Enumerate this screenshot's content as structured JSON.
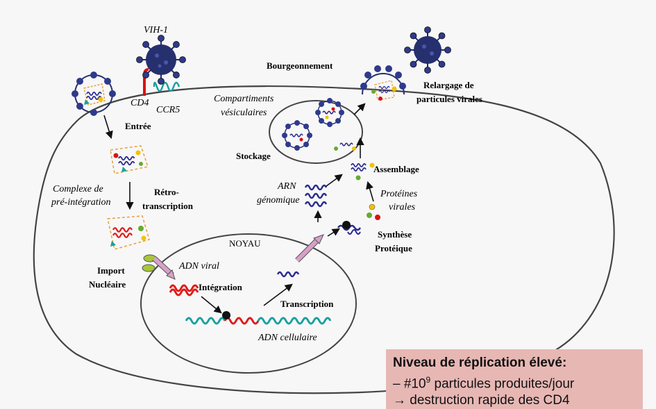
{
  "labels": {
    "vih": "VIH-1",
    "cd4": "CD4",
    "ccr5": "CCR5",
    "bourgeonnement": "Bourgeonnement",
    "relargage_1": "Relargage de",
    "relargage_2": "particules virales",
    "compartiments_1": "Compartiments",
    "compartiments_2": "vésiculaires",
    "entree": "Entrée",
    "stockage": "Stockage",
    "assemblage": "Assemblage",
    "complexe_1": "Complexe de",
    "complexe_2": "pré-intégration",
    "retro_1": "Rétro-",
    "retro_2": "transcription",
    "arn_1": "ARN",
    "arn_2": "génomique",
    "proteines_1": "Protéines",
    "proteines_2": "virales",
    "noyau": "NOYAU",
    "synthese_1": "Synthèse",
    "synthese_2": "Protéique",
    "import_1": "Import",
    "import_2": "Nucléaire",
    "adn_viral": "ADN viral",
    "integration": "Intégration",
    "transcription": "Transcription",
    "adn_cellulaire": "ADN cellulaire"
  },
  "note": {
    "title": "Niveau de réplication élevé:",
    "line1_prefix": "– #10",
    "line1_exp": "9",
    "line1_suffix": " particules produites/jour",
    "line2": "→ destruction rapide des CD4"
  },
  "colors": {
    "virus": "#1f2a6b",
    "membrane": "#333333",
    "rna": "#2a2a90",
    "dna_red": "#e01a1a",
    "dna_teal": "#1aa0a0",
    "capsid_dash": "#e5a040",
    "note_bg": "#e7b7b4",
    "import_arrow": "#d8a0c8"
  }
}
